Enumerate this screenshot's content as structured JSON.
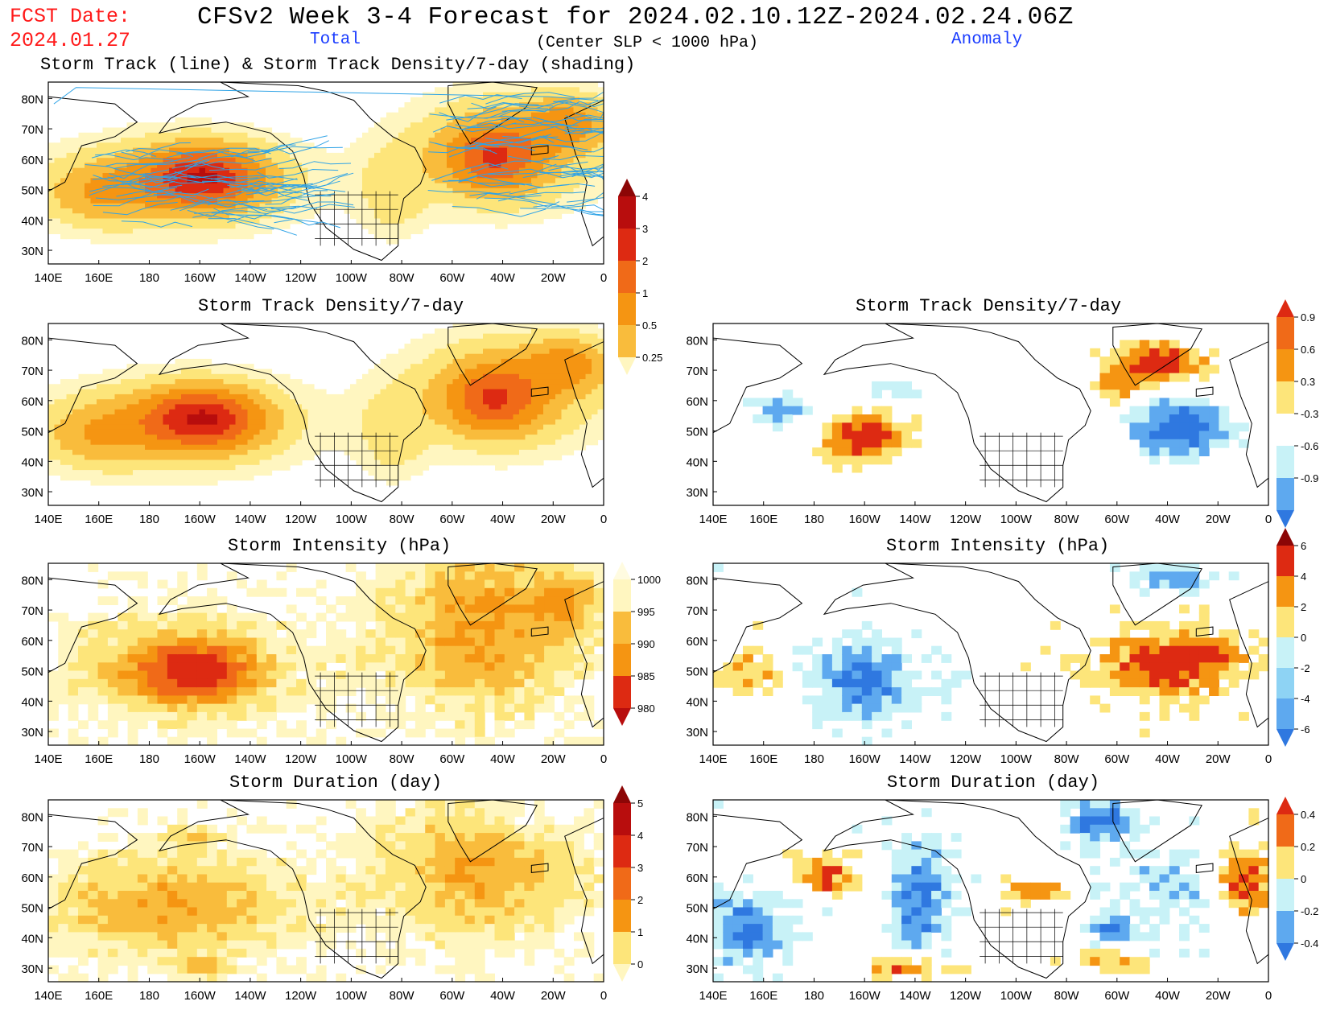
{
  "header": {
    "fcst_label": "FCST Date:",
    "fcst_date": "2024.01.27",
    "main_title": "CFSv2 Week 3-4 Forecast for 2024.02.10.12Z-2024.02.24.06Z",
    "total_label": "Total",
    "center_note": "(Center SLP < 1000 hPa)",
    "anomaly_label": "Anomaly"
  },
  "colors": {
    "warm": [
      "#fff6c0",
      "#fde57a",
      "#f9bc3c",
      "#f59512",
      "#f06a18",
      "#dd2a12",
      "#b80d0d",
      "#8c0606"
    ],
    "cool": [
      "#c8f2f7",
      "#8ed3f4",
      "#5ea9ef",
      "#2f78e0",
      "#174dc8"
    ],
    "track_line": "#2fa3e6",
    "land_outline": "#000000"
  },
  "axes": {
    "lat_labels": [
      "80N",
      "70N",
      "60N",
      "50N",
      "40N",
      "30N"
    ],
    "lon_labels": [
      "140E",
      "160E",
      "180",
      "160W",
      "140W",
      "120W",
      "100W",
      "80W",
      "60W",
      "40W",
      "20W",
      "0"
    ]
  },
  "panels": [
    {
      "id": "track",
      "title": "Storm Track (line) & Storm Track Density/7-day (shading)",
      "kind": "density-track"
    },
    {
      "id": "density_total",
      "title": "Storm Track Density/7-day",
      "kind": "density"
    },
    {
      "id": "density_anom",
      "title": "Storm Track Density/7-day",
      "kind": "density-anom"
    },
    {
      "id": "intensity_total",
      "title": "Storm Intensity (hPa)",
      "kind": "intensity"
    },
    {
      "id": "intensity_anom",
      "title": "Storm Intensity (hPa)",
      "kind": "intensity-anom"
    },
    {
      "id": "duration_total",
      "title": "Storm Duration (day)",
      "kind": "duration"
    },
    {
      "id": "duration_anom",
      "title": "Storm Duration (day)",
      "kind": "duration-anom"
    }
  ],
  "colorbars": {
    "density": {
      "labels": [
        "4",
        "3",
        "2",
        "1",
        "0.5",
        "0.25"
      ]
    },
    "density_anom": {
      "labels": [
        "0.9",
        "0.6",
        "0.3",
        "-0.3",
        "-0.6",
        "-0.9"
      ]
    },
    "intensity": {
      "labels": [
        "1000",
        "995",
        "990",
        "985",
        "980"
      ]
    },
    "intensity_anom": {
      "labels": [
        "6",
        "4",
        "2",
        "0",
        "-2",
        "-4",
        "-6"
      ]
    },
    "duration": {
      "labels": [
        "5",
        "4",
        "3",
        "2",
        "1",
        "0"
      ]
    },
    "duration_anom": {
      "labels": [
        "0.4",
        "0.2",
        "0",
        "-0.2",
        "-0.4"
      ]
    }
  }
}
